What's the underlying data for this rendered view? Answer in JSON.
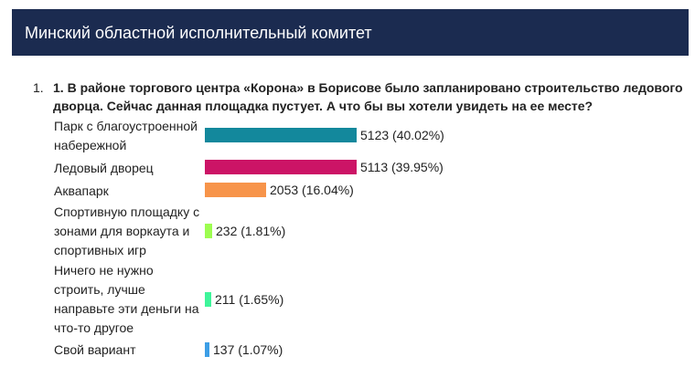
{
  "header": {
    "title": "Минский областной исполнительный комитет"
  },
  "poll": {
    "number": "1.",
    "question": "1. В районе торгового центра «Корона» в Борисове было запланировано строительство ледового дворца. Сейчас данная площадка пустует. А что бы вы хотели увидеть на ее месте?",
    "answers": [
      {
        "label": "Парк с благоустроенной набережной",
        "votes": 5123,
        "value_text": "5123 (40.02%)",
        "percent": 40.02,
        "color": "#13889c"
      },
      {
        "label": "Ледовый дворец",
        "votes": 5113,
        "value_text": "5113 (39.95%)",
        "percent": 39.95,
        "color": "#cc1466"
      },
      {
        "label": "Аквапарк",
        "votes": 2053,
        "value_text": "2053 (16.04%)",
        "percent": 16.04,
        "color": "#f7944a"
      },
      {
        "label": "Спортивную площадку с зонами для воркаута и спортивных игр",
        "votes": 232,
        "value_text": "232 (1.81%)",
        "percent": 1.81,
        "color": "#9dfd50"
      },
      {
        "label": "Ничего не нужно строить, лучше направьте эти деньги на что-то другое",
        "votes": 211,
        "value_text": "211 (1.65%)",
        "percent": 1.65,
        "color": "#3ef59a"
      },
      {
        "label": "Свой вариант",
        "votes": 137,
        "value_text": "137 (1.07%)",
        "percent": 1.07,
        "color": "#3d9ee6"
      }
    ]
  }
}
